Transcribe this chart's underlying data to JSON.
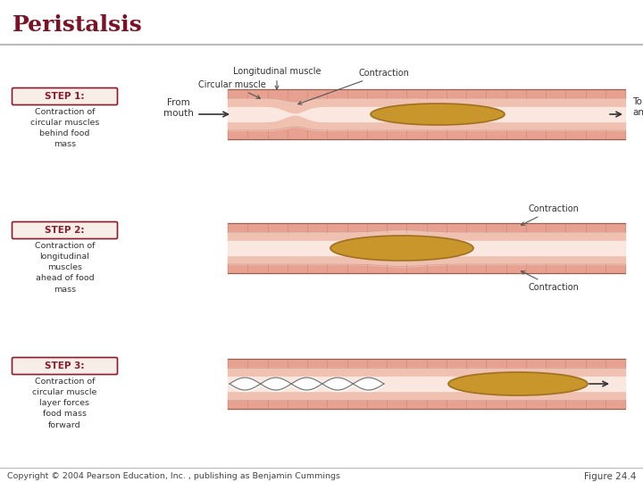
{
  "title": "Peristalsis",
  "title_color": "#7B1225",
  "title_fontsize": 18,
  "copyright_text": "Copyright © 2004 Pearson Education, Inc. , publishing as Benjamin Cummings",
  "figure_ref": "Figure 24.4",
  "bg": "#ffffff",
  "divider_color": "#bbbbbb",
  "outer_muscle_color": "#E8A090",
  "inner_muscle_color": "#F0C0B0",
  "lumen_color": "#FAE8E0",
  "food_fill": "#C8962A",
  "food_edge": "#A07020",
  "step_bg": "#F8EEE8",
  "step_border": "#8B1A2A",
  "step_title_color": "#8B1A2A",
  "text_color": "#333333",
  "arrow_color": "#333333",
  "label_longitudinal": "Longitudinal muscle",
  "label_circular": "Circular muscle",
  "label_contraction": "Contraction",
  "label_from_mouth": "From\nmouth",
  "label_to_anus": "To\nanus",
  "step1_title": "STEP 1:",
  "step1_text": "Contraction of\ncircular muscles\nbehind food\nmass",
  "step2_title": "STEP 2:",
  "step2_text": "Contraction of\nlongitudinal\nmuscles\nahead of food\nmass",
  "step3_title": "STEP 3:",
  "step3_text": "Contraction of\ncircular muscle\nlayer forces\nfood mass\nforward"
}
